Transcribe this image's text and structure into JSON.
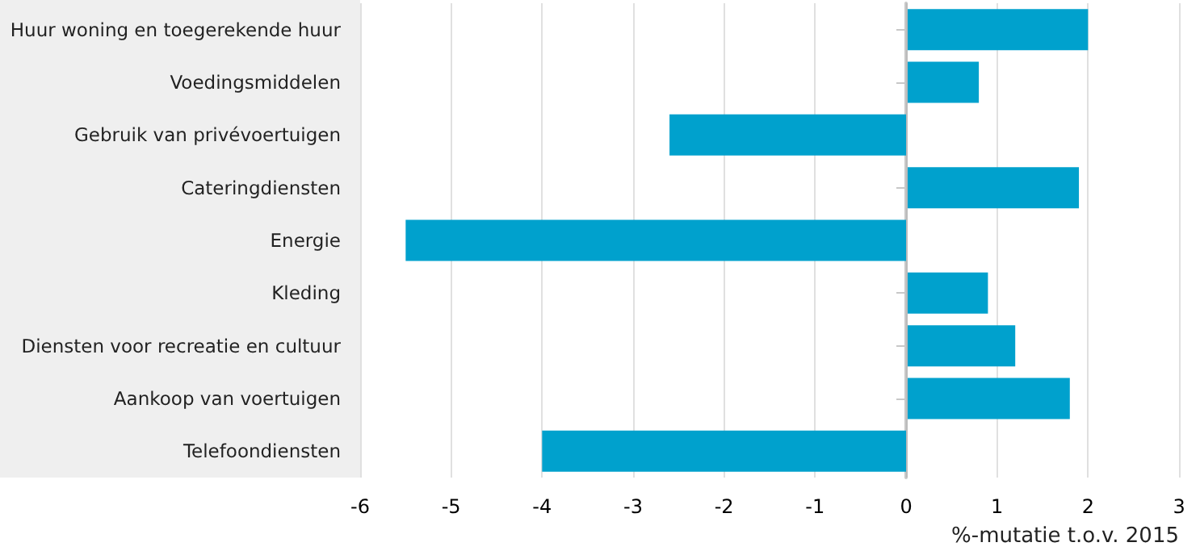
{
  "chart_data": {
    "type": "bar",
    "orientation": "horizontal",
    "xlabel": "%-mutatie t.o.v. 2015",
    "categories": [
      "Huur woning en toegerekende huur",
      "Voedingsmiddelen",
      "Gebruik van privévoertuigen",
      "Cateringdiensten",
      "Energie",
      "Kleding",
      "Diensten voor recreatie en cultuur",
      "Aankoop van voertuigen",
      "Telefoondiensten"
    ],
    "values": [
      2.0,
      0.8,
      -2.6,
      1.9,
      -5.5,
      0.9,
      1.2,
      1.8,
      -4.0
    ],
    "color": "#00a1cd",
    "xlim": [
      -6,
      3
    ],
    "xticks": [
      -6,
      -5,
      -4,
      -3,
      -2,
      -1,
      0,
      1,
      2,
      3
    ],
    "grid": "x"
  }
}
